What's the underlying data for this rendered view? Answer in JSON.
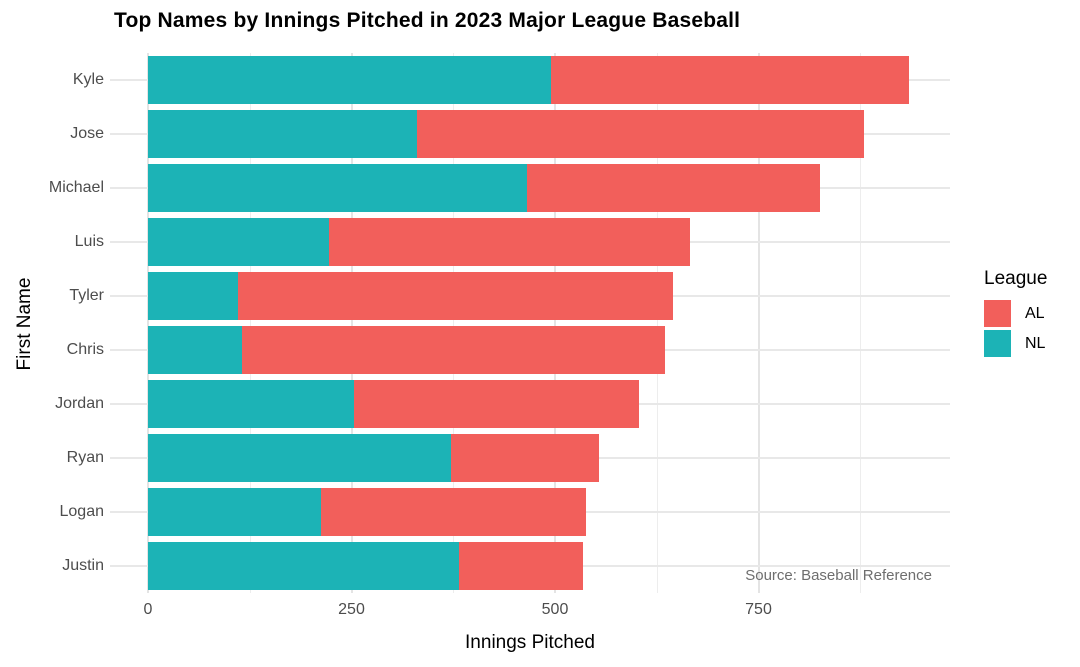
{
  "chart_data": {
    "type": "bar",
    "orientation": "horizontal",
    "stacked": true,
    "title": "Top Names by Innings Pitched in 2023 Major League Baseball",
    "xlabel": "Innings Pitched",
    "ylabel": "First Name",
    "categories": [
      "Kyle",
      "Jose",
      "Michael",
      "Luis",
      "Tyler",
      "Chris",
      "Jordan",
      "Ryan",
      "Logan",
      "Justin"
    ],
    "series": [
      {
        "name": "NL",
        "color": "#1CB3B6",
        "values": [
          495,
          330,
          465,
          222,
          110,
          115,
          253,
          372,
          213,
          382
        ]
      },
      {
        "name": "AL",
        "color": "#F25F5B",
        "values": [
          440,
          550,
          360,
          444,
          535,
          520,
          350,
          182,
          325,
          152
        ]
      }
    ],
    "totals": [
      935,
      880,
      825,
      666,
      645,
      635,
      603,
      554,
      538,
      534
    ],
    "x_ticks": [
      0,
      250,
      500,
      750
    ],
    "x_minor_ticks": [
      125,
      375,
      625,
      875
    ],
    "xlim": [
      0,
      985
    ],
    "grid": true,
    "legend": {
      "title": "League",
      "position": "right",
      "entries": [
        {
          "label": "AL",
          "color": "#F25F5B"
        },
        {
          "label": "NL",
          "color": "#1CB3B6"
        }
      ]
    },
    "annotation": "Source: Baseball Reference"
  }
}
